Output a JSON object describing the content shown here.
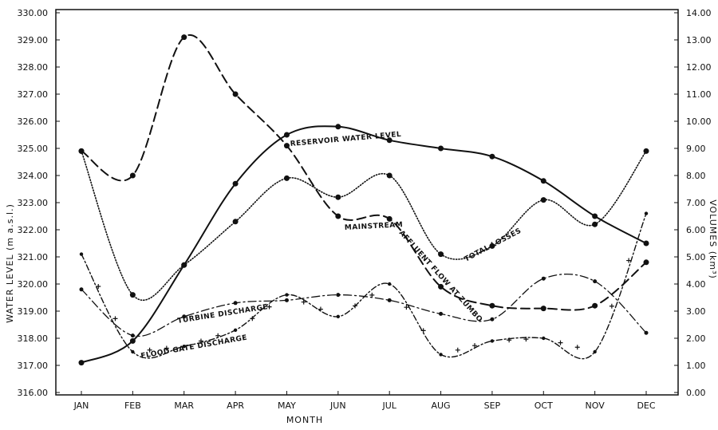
{
  "chart_data": {
    "type": "line",
    "title": "",
    "xlabel": "MONTH",
    "ylabel_left": "WATER LEVEL (m a.s.l.)",
    "ylabel_right": "VOLUMES (km³)",
    "ylim_left": [
      316,
      330
    ],
    "ylim_right": [
      0,
      14
    ],
    "yticks_left": [
      "316.00",
      "317.00",
      "318.00",
      "319.00",
      "320.00",
      "321.00",
      "322.00",
      "323.00",
      "324.00",
      "325.00",
      "326.00",
      "327.00",
      "328.00",
      "329.00",
      "330.00"
    ],
    "yticks_right": [
      "0.00",
      "1.00",
      "2.00",
      "3.00",
      "4.00",
      "5.00",
      "6.00",
      "7.00",
      "8.00",
      "9.00",
      "10.00",
      "11.00",
      "12.00",
      "13.00",
      "14.00"
    ],
    "grid": false,
    "categories": [
      "JAN",
      "FEB",
      "MAR",
      "APR",
      "MAY",
      "JUN",
      "JUL",
      "AUG",
      "SEP",
      "OCT",
      "NOV",
      "DEC"
    ],
    "series": [
      {
        "name": "RESERVOIR WATER LEVEL",
        "axis": "left",
        "style": "solid",
        "values": [
          317.1,
          317.9,
          320.7,
          323.7,
          325.5,
          325.8,
          325.3,
          325.0,
          324.7,
          323.8,
          322.5,
          321.5
        ]
      },
      {
        "name": "MAINSTREAM AFFLUENT FLOW AT ZUMBO",
        "axis": "right",
        "style": "dashed",
        "values": [
          8.9,
          8.0,
          13.1,
          11.0,
          9.1,
          6.5,
          6.4,
          3.9,
          3.2,
          3.1,
          3.2,
          4.8
        ]
      },
      {
        "name": "TOTAL LOSSES",
        "axis": "right",
        "style": "dotted",
        "values": [
          8.9,
          3.6,
          4.7,
          6.3,
          7.9,
          7.2,
          8.0,
          5.1,
          5.4,
          7.1,
          6.2,
          8.9
        ]
      },
      {
        "name": "TURBINE DISCHARGE",
        "axis": "right",
        "style": "dash-dot",
        "values": [
          3.8,
          2.1,
          2.8,
          3.3,
          3.4,
          3.6,
          3.4,
          2.9,
          2.7,
          4.2,
          4.1,
          2.2
        ]
      },
      {
        "name": "FLOOD GATE DISCHARGE",
        "axis": "right",
        "style": "dash-dot-cross",
        "values": [
          5.1,
          1.5,
          1.7,
          2.3,
          3.6,
          2.8,
          4.0,
          1.4,
          1.9,
          2.0,
          1.5,
          6.6
        ]
      }
    ],
    "curve_labels": {
      "reservoir": "RESERVOIR WATER LEVEL",
      "mainstream": "MAINSTREAM",
      "affluent": "AFFLUENT FLOW AT ZUMBO",
      "losses": "TOTAL LOSSES",
      "turbine": "TURBINE DISCHARGE",
      "floodgate": "FLOOD GATE DISCHARGE"
    },
    "color": "#111111"
  }
}
